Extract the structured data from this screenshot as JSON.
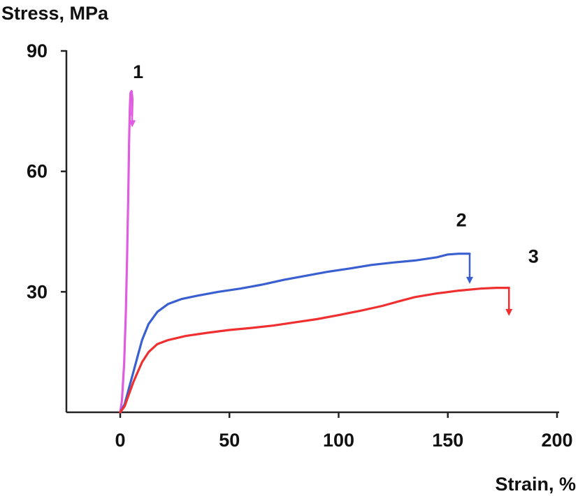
{
  "chart_data": {
    "type": "line",
    "title": "",
    "ylabel": "Stress, MPa",
    "xlabel": "Strain, %",
    "xlim": [
      -25,
      200
    ],
    "ylim": [
      0,
      90
    ],
    "x_ticks": [
      0,
      50,
      100,
      150,
      200
    ],
    "y_ticks": [
      30,
      60,
      90
    ],
    "grid": false,
    "series": [
      {
        "name": "1",
        "color": "#e05ce0",
        "points": [
          [
            0,
            0
          ],
          [
            0.8,
            3
          ],
          [
            1.8,
            12
          ],
          [
            2.6,
            25
          ],
          [
            3.2,
            40
          ],
          [
            3.7,
            55
          ],
          [
            4.1,
            68
          ],
          [
            4.4,
            76
          ],
          [
            4.7,
            79.5
          ],
          [
            5.2,
            80
          ],
          [
            5.6,
            78
          ],
          [
            5.4,
            74
          ]
        ],
        "break_arrow": {
          "x": 5.5,
          "from": 78,
          "to": 71
        }
      },
      {
        "name": "2",
        "color": "#3a60d0",
        "points": [
          [
            0,
            0
          ],
          [
            2,
            2
          ],
          [
            4,
            6
          ],
          [
            6,
            10
          ],
          [
            8,
            14
          ],
          [
            10,
            18
          ],
          [
            13,
            22
          ],
          [
            17,
            25
          ],
          [
            22,
            27
          ],
          [
            28,
            28.2
          ],
          [
            35,
            29
          ],
          [
            45,
            30
          ],
          [
            55,
            30.8
          ],
          [
            65,
            31.8
          ],
          [
            75,
            33
          ],
          [
            85,
            34
          ],
          [
            95,
            35
          ],
          [
            105,
            35.8
          ],
          [
            115,
            36.7
          ],
          [
            125,
            37.3
          ],
          [
            135,
            37.8
          ],
          [
            145,
            38.6
          ],
          [
            150,
            39.3
          ],
          [
            155,
            39.5
          ],
          [
            160,
            39.5
          ]
        ],
        "break_arrow": {
          "x": 160,
          "from": 39.5,
          "to": 32
        }
      },
      {
        "name": "3",
        "color": "#f03030",
        "points": [
          [
            0,
            0
          ],
          [
            2,
            1.5
          ],
          [
            4,
            4.5
          ],
          [
            6,
            7.5
          ],
          [
            8,
            10
          ],
          [
            10,
            12.5
          ],
          [
            13,
            15
          ],
          [
            17,
            17
          ],
          [
            22,
            18
          ],
          [
            30,
            19
          ],
          [
            40,
            19.8
          ],
          [
            50,
            20.5
          ],
          [
            60,
            21
          ],
          [
            70,
            21.6
          ],
          [
            80,
            22.4
          ],
          [
            90,
            23.2
          ],
          [
            100,
            24.2
          ],
          [
            110,
            25.3
          ],
          [
            120,
            26.5
          ],
          [
            128,
            27.7
          ],
          [
            135,
            28.7
          ],
          [
            145,
            29.6
          ],
          [
            155,
            30.3
          ],
          [
            165,
            30.8
          ],
          [
            172,
            31
          ],
          [
            178,
            31
          ]
        ],
        "break_arrow": {
          "x": 178,
          "from": 31,
          "to": 24
        }
      }
    ],
    "annotations": [
      {
        "text": "1",
        "x": 5,
        "y": 85
      },
      {
        "text": "2",
        "x": 153,
        "y": 48
      },
      {
        "text": "3",
        "x": 186,
        "y": 39
      }
    ]
  }
}
